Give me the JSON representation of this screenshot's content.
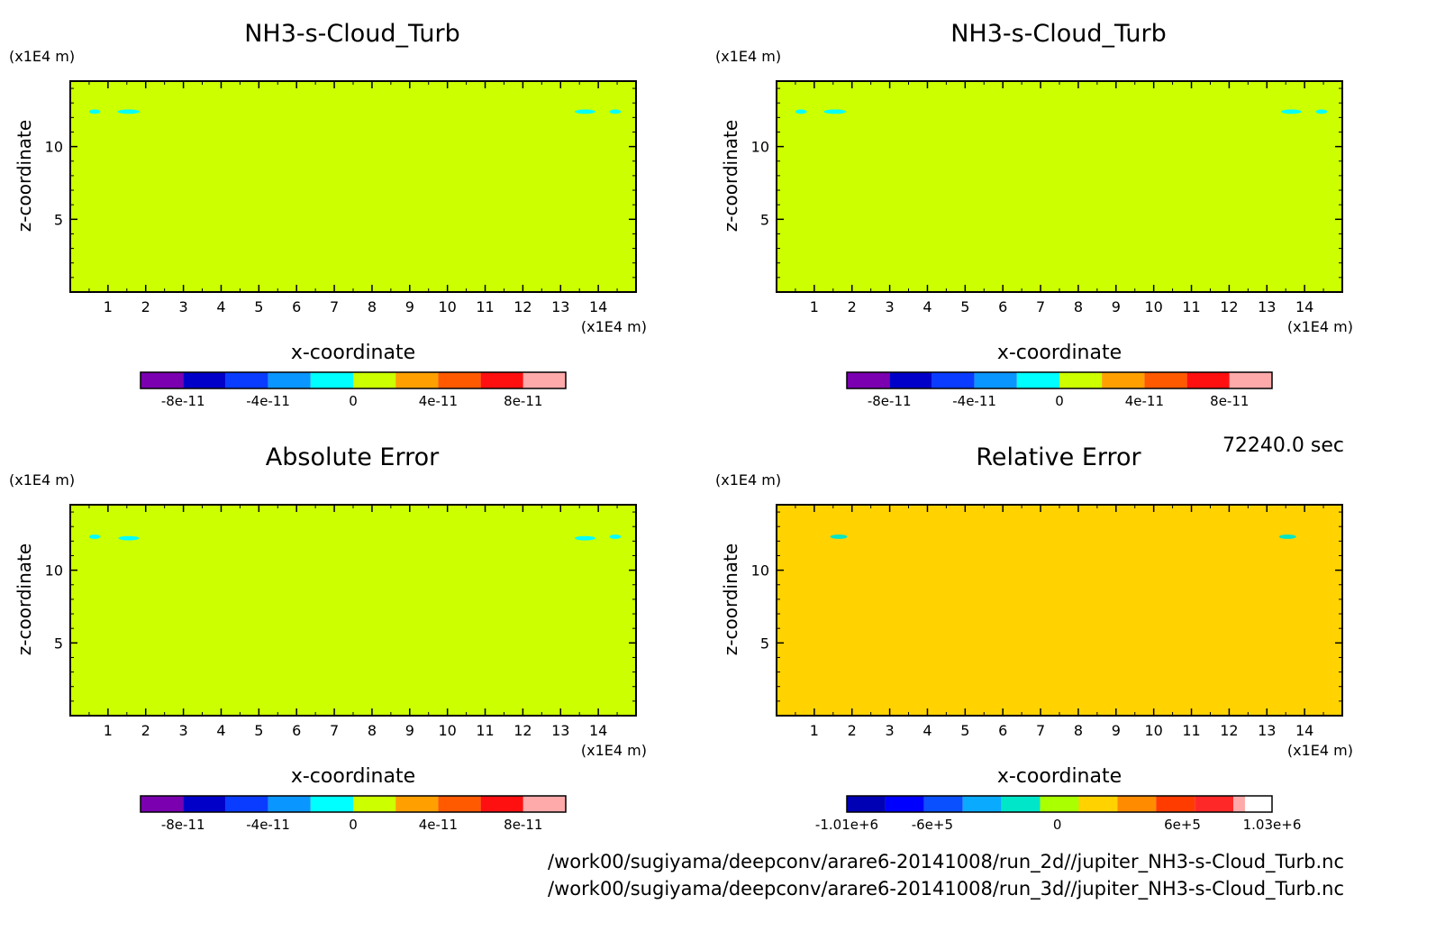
{
  "chart_data": [
    {
      "type": "heatmap",
      "title": "NH3-s-Cloud_Turb",
      "xlabel": "x-coordinate",
      "ylabel": "z-coordinate",
      "x_unit": "(x1E4 m)",
      "y_unit": "(x1E4 m)",
      "xlim": [
        0,
        15
      ],
      "ylim": [
        0,
        14.5
      ],
      "x_ticks": [
        1,
        2,
        3,
        4,
        5,
        6,
        7,
        8,
        9,
        10,
        11,
        12,
        13,
        14
      ],
      "y_ticks": [
        5,
        10
      ],
      "background_level": "0 to 2e-11",
      "features": [
        {
          "x_center": 0.65,
          "z": 12.4,
          "width": 0.3,
          "level": "-2e-11 to 0"
        },
        {
          "x_center": 1.55,
          "z": 12.4,
          "width": 0.6,
          "level": "-2e-11 to 0"
        },
        {
          "x_center": 13.65,
          "z": 12.4,
          "width": 0.55,
          "level": "-2e-11 to 0"
        },
        {
          "x_center": 14.45,
          "z": 12.4,
          "width": 0.3,
          "level": "-2e-11 to 0"
        }
      ],
      "colorbar": {
        "range": [
          -1e-10,
          1e-10
        ],
        "colors": [
          "#7a00b0",
          "#0000c8",
          "#0a3cff",
          "#0a96ff",
          "#00ffff",
          "#ccff00",
          "#ffa000",
          "#ff5a00",
          "#ff1010",
          "#ffaaaa"
        ],
        "tick_values": [
          -8e-11,
          -4e-11,
          0,
          4e-11,
          8e-11
        ],
        "tick_labels": [
          "-8e-11",
          "-4e-11",
          "0",
          "4e-11",
          "8e-11"
        ]
      }
    },
    {
      "type": "heatmap",
      "title": "NH3-s-Cloud_Turb",
      "xlabel": "x-coordinate",
      "ylabel": "z-coordinate",
      "x_unit": "(x1E4 m)",
      "y_unit": "(x1E4 m)",
      "xlim": [
        0,
        15
      ],
      "ylim": [
        0,
        14.5
      ],
      "x_ticks": [
        1,
        2,
        3,
        4,
        5,
        6,
        7,
        8,
        9,
        10,
        11,
        12,
        13,
        14
      ],
      "y_ticks": [
        5,
        10
      ],
      "background_level": "0 to 2e-11",
      "features": [
        {
          "x_center": 0.65,
          "z": 12.4,
          "width": 0.3,
          "level": "-2e-11 to 0"
        },
        {
          "x_center": 1.55,
          "z": 12.4,
          "width": 0.6,
          "level": "-2e-11 to 0"
        },
        {
          "x_center": 13.65,
          "z": 12.4,
          "width": 0.55,
          "level": "-2e-11 to 0"
        },
        {
          "x_center": 14.45,
          "z": 12.4,
          "width": 0.3,
          "level": "-2e-11 to 0"
        }
      ],
      "colorbar": {
        "range": [
          -1e-10,
          1e-10
        ],
        "colors": [
          "#7a00b0",
          "#0000c8",
          "#0a3cff",
          "#0a96ff",
          "#00ffff",
          "#ccff00",
          "#ffa000",
          "#ff5a00",
          "#ff1010",
          "#ffaaaa"
        ],
        "tick_values": [
          -8e-11,
          -4e-11,
          0,
          4e-11,
          8e-11
        ],
        "tick_labels": [
          "-8e-11",
          "-4e-11",
          "0",
          "4e-11",
          "8e-11"
        ]
      }
    },
    {
      "type": "heatmap",
      "title": "Absolute Error",
      "xlabel": "x-coordinate",
      "ylabel": "z-coordinate",
      "x_unit": "(x1E4 m)",
      "y_unit": "(x1E4 m)",
      "xlim": [
        0,
        15
      ],
      "ylim": [
        0,
        14.5
      ],
      "x_ticks": [
        1,
        2,
        3,
        4,
        5,
        6,
        7,
        8,
        9,
        10,
        11,
        12,
        13,
        14
      ],
      "y_ticks": [
        5,
        10
      ],
      "background_level": "0 to 2e-11",
      "features": [
        {
          "x_center": 0.65,
          "z": 12.3,
          "width": 0.3,
          "level": "-2e-11 to 0"
        },
        {
          "x_center": 1.55,
          "z": 12.2,
          "width": 0.55,
          "level": "-2e-11 to 0"
        },
        {
          "x_center": 13.65,
          "z": 12.2,
          "width": 0.55,
          "level": "-2e-11 to 0"
        },
        {
          "x_center": 14.45,
          "z": 12.3,
          "width": 0.3,
          "level": "-2e-11 to 0"
        }
      ],
      "colorbar": {
        "range": [
          -1e-10,
          1e-10
        ],
        "colors": [
          "#7a00b0",
          "#0000c8",
          "#0a3cff",
          "#0a96ff",
          "#00ffff",
          "#ccff00",
          "#ffa000",
          "#ff5a00",
          "#ff1010",
          "#ffaaaa"
        ],
        "tick_values": [
          -8e-11,
          -4e-11,
          0,
          4e-11,
          8e-11
        ],
        "tick_labels": [
          "-8e-11",
          "-4e-11",
          "0",
          "4e-11",
          "8e-11"
        ]
      }
    },
    {
      "type": "heatmap",
      "title": "Relative Error",
      "xlabel": "x-coordinate",
      "ylabel": "z-coordinate",
      "x_unit": "(x1E4 m)",
      "y_unit": "(x1E4 m)",
      "xlim": [
        0,
        15
      ],
      "ylim": [
        0,
        14.5
      ],
      "x_ticks": [
        1,
        2,
        3,
        4,
        5,
        6,
        7,
        8,
        9,
        10,
        11,
        12,
        13,
        14
      ],
      "y_ticks": [
        5,
        10
      ],
      "background_level": "0 to 2e+5",
      "features": [
        {
          "x_center": 1.65,
          "z": 12.3,
          "width": 0.45,
          "level": "-2e+5 to 0"
        },
        {
          "x_center": 13.55,
          "z": 12.3,
          "width": 0.45,
          "level": "-2e+5 to 0"
        }
      ],
      "colorbar": {
        "range": [
          -1010000.0,
          1030000.0
        ],
        "colors": [
          "#0000b4",
          "#0000ff",
          "#0a50ff",
          "#0aaaff",
          "#00e6c8",
          "#aaff00",
          "#ffd200",
          "#ff8c00",
          "#ff3c00",
          "#ff2828",
          "#ffaaaa"
        ],
        "tick_values": [
          -1010000.0,
          -600000.0,
          0,
          600000.0,
          1030000.0
        ],
        "tick_labels": [
          "-1.01e+6",
          "-6e+5",
          "0",
          "6e+5",
          "1.03e+6"
        ]
      }
    }
  ],
  "time_label": "72240.0 sec",
  "file_paths": [
    "/work00/sugiyama/deepconv/arare6-20141008/run_2d//jupiter_NH3-s-Cloud_Turb.nc",
    "/work00/sugiyama/deepconv/arare6-20141008/run_3d//jupiter_NH3-s-Cloud_Turb.nc"
  ]
}
